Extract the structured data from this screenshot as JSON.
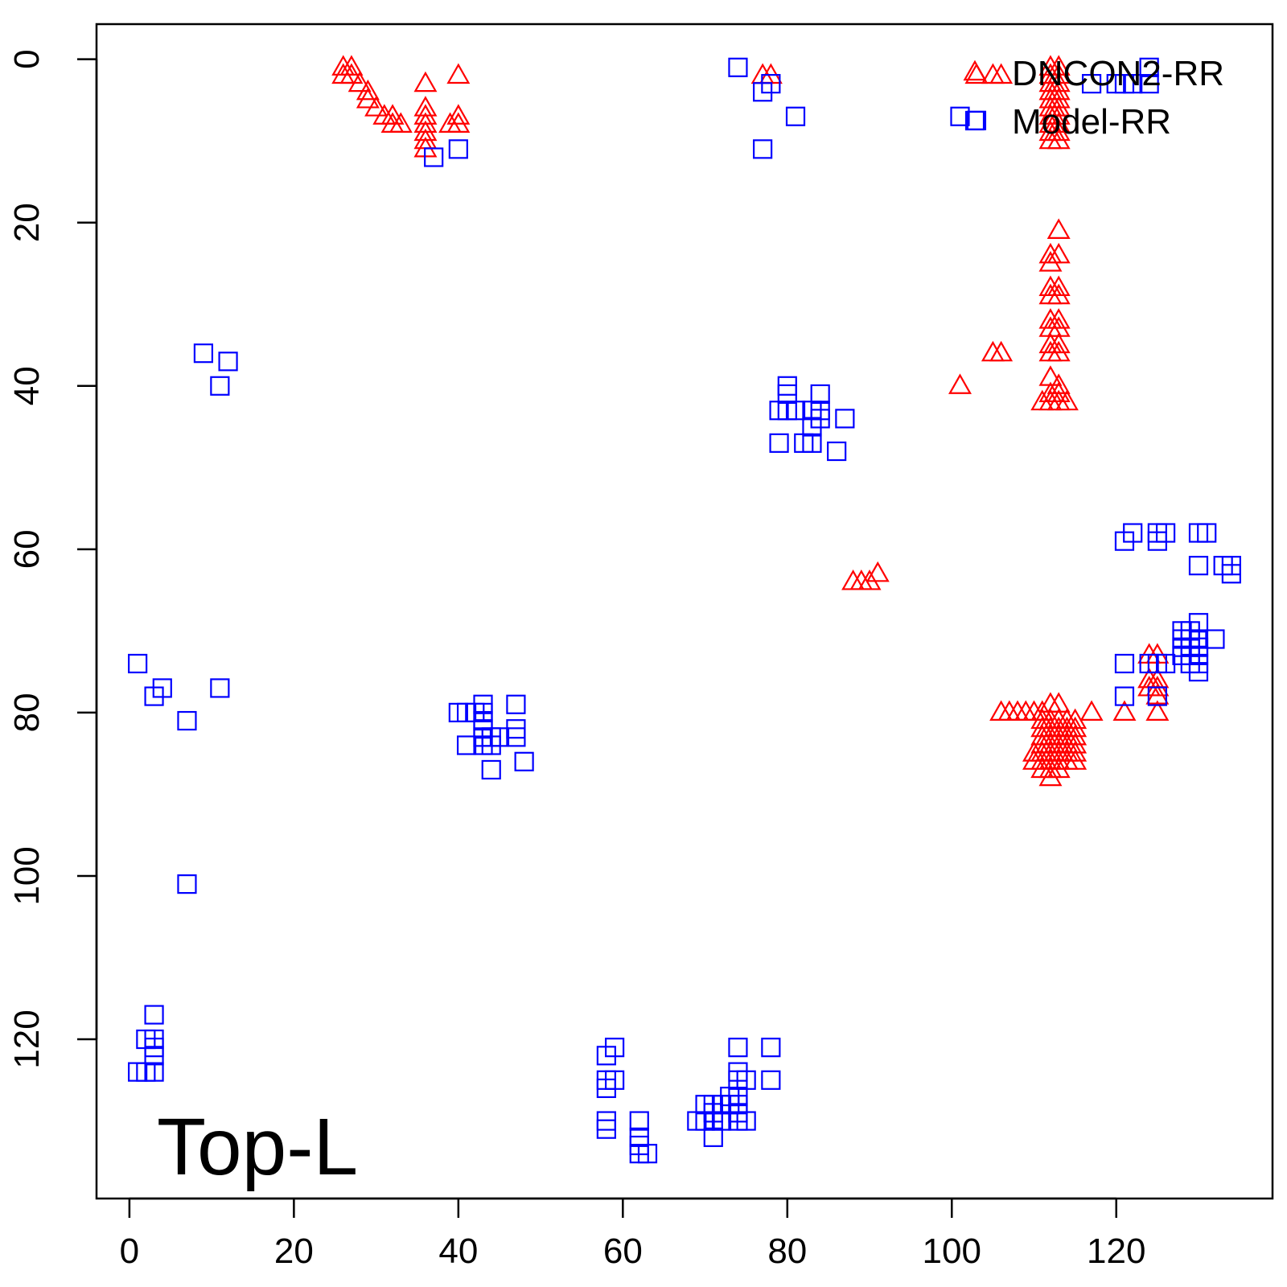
{
  "chart_data": {
    "type": "scatter",
    "title": "",
    "xlabel": "",
    "ylabel": "",
    "xlim": [
      -4,
      139
    ],
    "ylim": [
      -4.3,
      139.5
    ],
    "y_reversed": true,
    "grid": false,
    "x_ticks": [
      "0",
      "20",
      "40",
      "60",
      "80",
      "100",
      "120"
    ],
    "y_ticks": [
      "0",
      "20",
      "40",
      "60",
      "80",
      "100",
      "120"
    ],
    "annotation": "Top-L",
    "legend": {
      "placement": "top-right",
      "entries": [
        {
          "label": "DNCON2-RR",
          "marker": "triangle",
          "color": "#ff0000"
        },
        {
          "label": "Model-RR",
          "marker": "square",
          "color": "#0000ff"
        }
      ]
    },
    "series": [
      {
        "name": "DNCON2-RR",
        "marker": "triangle",
        "color": "#ff0000",
        "points": [
          [
            26,
            1
          ],
          [
            27,
            1
          ],
          [
            26,
            2
          ],
          [
            27,
            2
          ],
          [
            28,
            3
          ],
          [
            29,
            4
          ],
          [
            29,
            5
          ],
          [
            30,
            6
          ],
          [
            31,
            7
          ],
          [
            32,
            7
          ],
          [
            32,
            8
          ],
          [
            33,
            8
          ],
          [
            36,
            3
          ],
          [
            36,
            6
          ],
          [
            36,
            7
          ],
          [
            36,
            8
          ],
          [
            36,
            9
          ],
          [
            36,
            10
          ],
          [
            36,
            11
          ],
          [
            39,
            8
          ],
          [
            40,
            2
          ],
          [
            40,
            7
          ],
          [
            40,
            8
          ],
          [
            77,
            2
          ],
          [
            78,
            2
          ],
          [
            103,
            2
          ],
          [
            105,
            2
          ],
          [
            106,
            2
          ],
          [
            112,
            1
          ],
          [
            113,
            1
          ],
          [
            112,
            2
          ],
          [
            113,
            2
          ],
          [
            112,
            3
          ],
          [
            113,
            3
          ],
          [
            112,
            4
          ],
          [
            113,
            4
          ],
          [
            112,
            5
          ],
          [
            113,
            5
          ],
          [
            112,
            6
          ],
          [
            113,
            6
          ],
          [
            112,
            7
          ],
          [
            113,
            7
          ],
          [
            112,
            8
          ],
          [
            113,
            8
          ],
          [
            112,
            9
          ],
          [
            113,
            9
          ],
          [
            112,
            10
          ],
          [
            113,
            10
          ],
          [
            113,
            21
          ],
          [
            112,
            24
          ],
          [
            113,
            24
          ],
          [
            112,
            25
          ],
          [
            112,
            28
          ],
          [
            113,
            28
          ],
          [
            112,
            29
          ],
          [
            113,
            29
          ],
          [
            112,
            32
          ],
          [
            113,
            32
          ],
          [
            112,
            33
          ],
          [
            113,
            33
          ],
          [
            112,
            35
          ],
          [
            113,
            35
          ],
          [
            112,
            36
          ],
          [
            113,
            36
          ],
          [
            112,
            39
          ],
          [
            113,
            40
          ],
          [
            112,
            41
          ],
          [
            113,
            41
          ],
          [
            111,
            42
          ],
          [
            112,
            42
          ],
          [
            113,
            42
          ],
          [
            114,
            42
          ],
          [
            101,
            40
          ],
          [
            105,
            36
          ],
          [
            106,
            36
          ],
          [
            88,
            64
          ],
          [
            89,
            64
          ],
          [
            90,
            64
          ],
          [
            91,
            63
          ],
          [
            106,
            80
          ],
          [
            107,
            80
          ],
          [
            108,
            80
          ],
          [
            109,
            80
          ],
          [
            110,
            80
          ],
          [
            111,
            80
          ],
          [
            117,
            80
          ],
          [
            112,
            79
          ],
          [
            113,
            79
          ],
          [
            111,
            81
          ],
          [
            112,
            81
          ],
          [
            113,
            81
          ],
          [
            114,
            81
          ],
          [
            115,
            81
          ],
          [
            111,
            82
          ],
          [
            112,
            82
          ],
          [
            113,
            82
          ],
          [
            114,
            82
          ],
          [
            115,
            82
          ],
          [
            111,
            83
          ],
          [
            112,
            83
          ],
          [
            113,
            83
          ],
          [
            114,
            83
          ],
          [
            115,
            83
          ],
          [
            111,
            84
          ],
          [
            112,
            84
          ],
          [
            113,
            84
          ],
          [
            114,
            84
          ],
          [
            115,
            84
          ],
          [
            110,
            85
          ],
          [
            111,
            85
          ],
          [
            112,
            85
          ],
          [
            113,
            85
          ],
          [
            114,
            85
          ],
          [
            115,
            85
          ],
          [
            110,
            86
          ],
          [
            111,
            86
          ],
          [
            112,
            86
          ],
          [
            113,
            86
          ],
          [
            114,
            86
          ],
          [
            115,
            86
          ],
          [
            111,
            87
          ],
          [
            112,
            87
          ],
          [
            113,
            87
          ],
          [
            112,
            88
          ],
          [
            124,
            73
          ],
          [
            125,
            73
          ],
          [
            124,
            76
          ],
          [
            125,
            76
          ],
          [
            124,
            77
          ],
          [
            125,
            77
          ],
          [
            125,
            78
          ],
          [
            125,
            80
          ],
          [
            121,
            80
          ]
        ]
      },
      {
        "name": "Model-RR",
        "marker": "square",
        "color": "#0000ff",
        "points": [
          [
            37,
            12
          ],
          [
            40,
            11
          ],
          [
            74,
            1
          ],
          [
            77,
            4
          ],
          [
            78,
            3
          ],
          [
            77,
            11
          ],
          [
            81,
            7
          ],
          [
            101,
            7
          ],
          [
            103,
            7.5
          ],
          [
            117,
            3
          ],
          [
            120,
            3
          ],
          [
            121,
            3
          ],
          [
            122,
            3
          ],
          [
            124,
            3
          ],
          [
            124,
            1
          ],
          [
            9,
            36
          ],
          [
            12,
            37
          ],
          [
            11,
            40
          ],
          [
            80,
            40
          ],
          [
            80,
            41
          ],
          [
            80,
            43
          ],
          [
            79,
            43
          ],
          [
            81,
            43
          ],
          [
            83,
            43
          ],
          [
            84,
            43
          ],
          [
            84,
            41
          ],
          [
            84,
            44
          ],
          [
            83,
            45
          ],
          [
            87,
            44
          ],
          [
            82,
            47
          ],
          [
            83,
            47
          ],
          [
            79,
            47
          ],
          [
            86,
            48
          ],
          [
            121,
            59
          ],
          [
            122,
            58
          ],
          [
            125,
            59
          ],
          [
            126,
            58
          ],
          [
            125,
            58
          ],
          [
            130,
            58
          ],
          [
            131,
            58
          ],
          [
            130,
            62
          ],
          [
            133,
            62
          ],
          [
            134,
            62
          ],
          [
            134,
            63
          ],
          [
            128,
            70
          ],
          [
            129,
            70
          ],
          [
            130,
            69
          ],
          [
            128,
            71
          ],
          [
            129,
            71
          ],
          [
            130,
            71
          ],
          [
            128,
            72
          ],
          [
            129,
            72
          ],
          [
            130,
            72
          ],
          [
            132,
            71
          ],
          [
            128,
            73
          ],
          [
            129,
            73
          ],
          [
            130,
            73
          ],
          [
            130,
            74
          ],
          [
            129,
            74
          ],
          [
            130,
            75
          ],
          [
            124,
            74
          ],
          [
            125,
            74
          ],
          [
            126,
            74
          ],
          [
            121,
            74
          ],
          [
            121,
            78
          ],
          [
            125,
            78
          ],
          [
            1,
            74
          ],
          [
            3,
            78
          ],
          [
            4,
            77
          ],
          [
            11,
            77
          ],
          [
            7,
            81
          ],
          [
            7,
            101
          ],
          [
            3,
            117
          ],
          [
            2,
            120
          ],
          [
            3,
            120
          ],
          [
            3,
            121
          ],
          [
            3,
            122
          ],
          [
            1,
            124
          ],
          [
            2,
            124
          ],
          [
            3,
            124
          ],
          [
            40,
            80
          ],
          [
            41,
            80
          ],
          [
            42,
            80
          ],
          [
            43,
            79
          ],
          [
            43,
            80
          ],
          [
            43,
            81
          ],
          [
            43,
            82
          ],
          [
            43,
            83
          ],
          [
            44,
            83
          ],
          [
            45,
            83
          ],
          [
            43,
            84
          ],
          [
            44,
            84
          ],
          [
            41,
            84
          ],
          [
            44,
            87
          ],
          [
            47,
            79
          ],
          [
            47,
            82
          ],
          [
            47,
            83
          ],
          [
            48,
            86
          ],
          [
            58,
            122
          ],
          [
            59,
            121
          ],
          [
            58,
            125
          ],
          [
            59,
            125
          ],
          [
            58,
            126
          ],
          [
            58,
            130
          ],
          [
            58,
            131
          ],
          [
            62,
            130
          ],
          [
            62,
            132
          ],
          [
            62,
            133
          ],
          [
            62,
            134
          ],
          [
            63,
            134
          ],
          [
            74,
            121
          ],
          [
            78,
            121
          ],
          [
            74,
            124
          ],
          [
            74,
            125
          ],
          [
            75,
            125
          ],
          [
            78,
            125
          ],
          [
            73,
            127
          ],
          [
            74,
            127
          ],
          [
            70,
            128
          ],
          [
            71,
            128
          ],
          [
            72,
            128
          ],
          [
            73,
            128
          ],
          [
            74,
            128
          ],
          [
            74,
            129
          ],
          [
            71,
            129
          ],
          [
            69,
            130
          ],
          [
            70,
            130
          ],
          [
            71,
            130
          ],
          [
            72,
            130
          ],
          [
            74,
            130
          ],
          [
            75,
            130
          ],
          [
            71,
            132
          ]
        ]
      }
    ]
  }
}
